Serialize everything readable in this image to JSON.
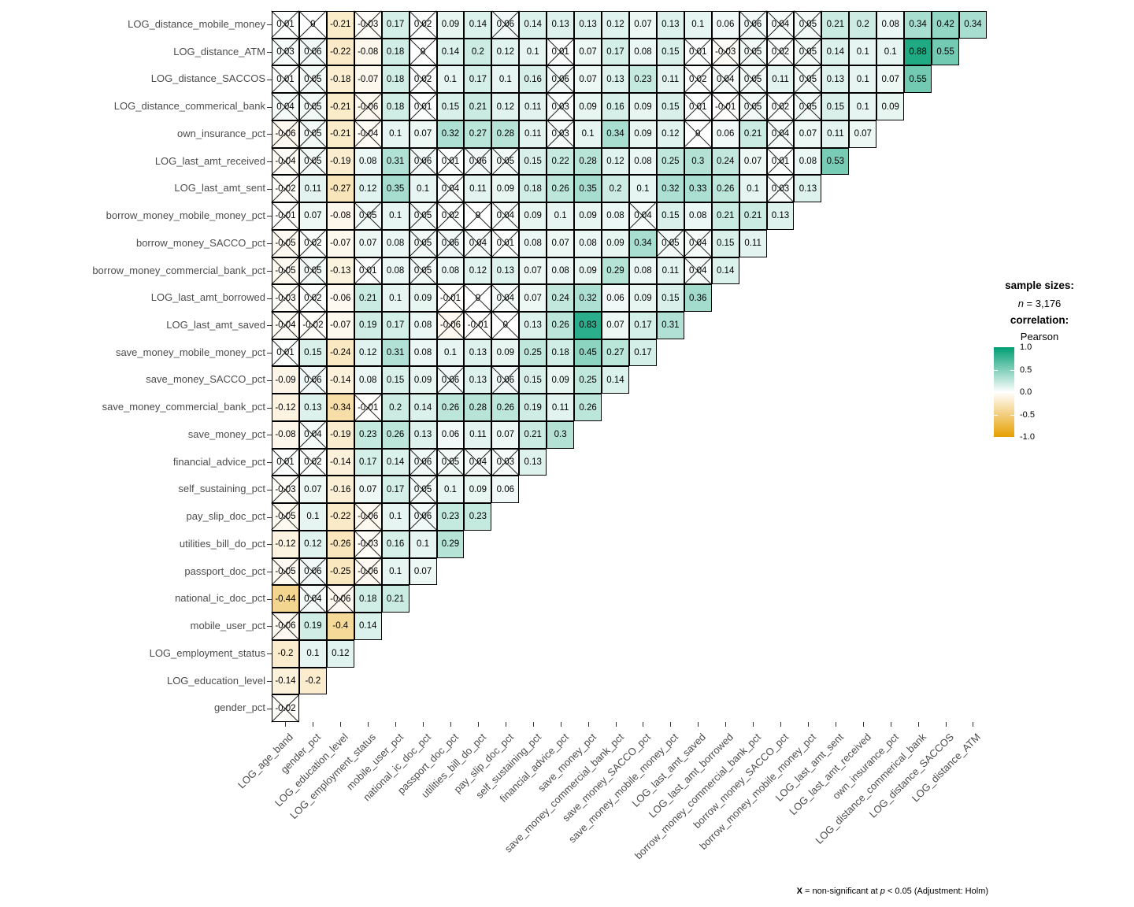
{
  "chart_data": {
    "type": "heatmap",
    "subtype": "triangular-correlation-matrix",
    "x_categories": [
      "LOG_age_band",
      "gender_pct",
      "LOG_education_level",
      "LOG_employment_status",
      "mobile_user_pct",
      "national_ic_doc_pct",
      "passport_doc_pct",
      "utilities_bill_do_pct",
      "pay_slip_doc_pct",
      "self_sustaining_pct",
      "financial_advice_pct",
      "save_money_pct",
      "save_money_commercial_bank_pct",
      "save_money_SACCO_pct",
      "save_money_mobile_money_pct",
      "LOG_last_amt_saved",
      "LOG_last_amt_borrowed",
      "borrow_money_commercial_bank_pct",
      "borrow_money_SACCO_pct",
      "borrow_money_mobile_money_pct",
      "LOG_last_amt_sent",
      "LOG_last_amt_received",
      "own_insurance_pct",
      "LOG_distance_commerical_bank",
      "LOG_distance_SACCOS",
      "LOG_distance_ATM"
    ],
    "rows": [
      {
        "label": "LOG_distance_mobile_money",
        "values": [
          0.01,
          0,
          -0.21,
          -0.03,
          0.17,
          0.02,
          0.09,
          0.14,
          0.06,
          0.14,
          0.13,
          0.13,
          0.12,
          0.07,
          0.13,
          0.1,
          0.06,
          0.06,
          0.04,
          0.05,
          0.21,
          0.2,
          0.08,
          0.34,
          0.42,
          0.34
        ],
        "non_significant_idx": [
          0,
          1,
          3,
          5,
          8,
          17,
          18,
          19
        ]
      },
      {
        "label": "LOG_distance_ATM",
        "values": [
          0.03,
          0.06,
          -0.22,
          -0.08,
          0.18,
          0,
          0.14,
          0.2,
          0.12,
          0.1,
          0.01,
          0.07,
          0.17,
          0.08,
          0.15,
          0.01,
          -0.03,
          0.05,
          0.02,
          0.05,
          0.14,
          0.1,
          0.1,
          0.88,
          0.55
        ],
        "non_significant_idx": [
          0,
          1,
          5,
          10,
          15,
          16,
          17,
          18,
          19
        ]
      },
      {
        "label": "LOG_distance_SACCOS",
        "values": [
          0.01,
          0.05,
          -0.18,
          -0.07,
          0.18,
          0.02,
          0.1,
          0.17,
          0.1,
          0.16,
          0.06,
          0.07,
          0.13,
          0.23,
          0.11,
          0.02,
          0.04,
          0.05,
          0.11,
          0.05,
          0.13,
          0.1,
          0.07,
          0.55
        ],
        "non_significant_idx": [
          0,
          1,
          5,
          10,
          15,
          16,
          17,
          19
        ]
      },
      {
        "label": "LOG_distance_commerical_bank",
        "values": [
          0.04,
          0.05,
          -0.21,
          -0.06,
          0.18,
          0.01,
          0.15,
          0.21,
          0.12,
          0.11,
          0.03,
          0.09,
          0.16,
          0.09,
          0.15,
          0.01,
          -0.01,
          0.05,
          0.02,
          0.05,
          0.15,
          0.1,
          0.09
        ],
        "non_significant_idx": [
          0,
          1,
          3,
          5,
          10,
          15,
          16,
          17,
          18,
          19
        ]
      },
      {
        "label": "own_insurance_pct",
        "values": [
          -0.06,
          0.05,
          -0.21,
          -0.04,
          0.1,
          0.07,
          0.32,
          0.27,
          0.28,
          0.11,
          0.03,
          0.1,
          0.34,
          0.09,
          0.12,
          0,
          0.06,
          0.21,
          0.04,
          0.07,
          0.11,
          0.07
        ],
        "non_significant_idx": [
          0,
          1,
          3,
          10,
          15,
          18
        ]
      },
      {
        "label": "LOG_last_amt_received",
        "values": [
          -0.04,
          0.05,
          -0.19,
          0.08,
          0.31,
          0.06,
          0.01,
          0.06,
          0.05,
          0.15,
          0.22,
          0.28,
          0.12,
          0.08,
          0.25,
          0.3,
          0.24,
          0.07,
          0.01,
          0.08,
          0.53
        ],
        "non_significant_idx": [
          0,
          1,
          5,
          6,
          7,
          8,
          18
        ]
      },
      {
        "label": "LOG_last_amt_sent",
        "values": [
          -0.02,
          0.11,
          -0.27,
          0.12,
          0.35,
          0.1,
          0.04,
          0.11,
          0.09,
          0.18,
          0.26,
          0.35,
          0.2,
          0.1,
          0.32,
          0.33,
          0.26,
          0.1,
          0.03,
          0.13
        ],
        "non_significant_idx": [
          0,
          6,
          18
        ]
      },
      {
        "label": "borrow_money_mobile_money_pct",
        "values": [
          -0.01,
          0.07,
          -0.08,
          0.05,
          0.1,
          0.05,
          0.02,
          0,
          0.04,
          0.09,
          0.1,
          0.09,
          0.08,
          0.04,
          0.15,
          0.08,
          0.21,
          0.21,
          0.13
        ],
        "non_significant_idx": [
          0,
          3,
          5,
          6,
          7,
          8,
          13
        ]
      },
      {
        "label": "borrow_money_SACCO_pct",
        "values": [
          -0.05,
          0.02,
          -0.07,
          0.07,
          0.08,
          0.05,
          0.06,
          0.04,
          0.01,
          0.08,
          0.07,
          0.08,
          0.09,
          0.34,
          0.05,
          0.04,
          0.15,
          0.11
        ],
        "non_significant_idx": [
          0,
          1,
          5,
          6,
          7,
          8,
          14,
          15
        ]
      },
      {
        "label": "borrow_money_commercial_bank_pct",
        "values": [
          -0.05,
          0.05,
          -0.13,
          0.01,
          0.08,
          0.05,
          0.08,
          0.12,
          0.13,
          0.07,
          0.08,
          0.09,
          0.29,
          0.08,
          0.11,
          0.04,
          0.14
        ],
        "non_significant_idx": [
          0,
          1,
          3,
          5,
          15
        ]
      },
      {
        "label": "LOG_last_amt_borrowed",
        "values": [
          -0.03,
          0.02,
          -0.06,
          0.21,
          0.1,
          0.09,
          -0.01,
          0,
          0.04,
          0.07,
          0.24,
          0.32,
          0.06,
          0.09,
          0.15,
          0.36
        ],
        "non_significant_idx": [
          0,
          1,
          6,
          7,
          8
        ]
      },
      {
        "label": "LOG_last_amt_saved",
        "values": [
          -0.04,
          -0.02,
          -0.07,
          0.19,
          0.17,
          0.08,
          -0.06,
          -0.01,
          0,
          0.13,
          0.26,
          0.83,
          0.07,
          0.17,
          0.31
        ],
        "non_significant_idx": [
          0,
          1,
          6,
          7,
          8
        ]
      },
      {
        "label": "save_money_mobile_money_pct",
        "values": [
          0.01,
          0.15,
          -0.24,
          0.12,
          0.31,
          0.08,
          0.1,
          0.13,
          0.09,
          0.25,
          0.18,
          0.45,
          0.27,
          0.17
        ],
        "non_significant_idx": [
          0
        ]
      },
      {
        "label": "save_money_SACCO_pct",
        "values": [
          -0.09,
          0.06,
          -0.14,
          0.08,
          0.15,
          0.09,
          0.06,
          0.13,
          0.06,
          0.15,
          0.09,
          0.25,
          0.14
        ],
        "non_significant_idx": [
          1,
          6,
          8
        ]
      },
      {
        "label": "save_money_commercial_bank_pct",
        "values": [
          -0.12,
          0.13,
          -0.34,
          -0.01,
          0.2,
          0.14,
          0.26,
          0.28,
          0.26,
          0.19,
          0.11,
          0.26
        ],
        "non_significant_idx": [
          3
        ]
      },
      {
        "label": "save_money_pct",
        "values": [
          -0.08,
          0.04,
          -0.19,
          0.23,
          0.26,
          0.13,
          0.06,
          0.11,
          0.07,
          0.21,
          0.3
        ],
        "non_significant_idx": [
          1
        ]
      },
      {
        "label": "financial_advice_pct",
        "values": [
          0.01,
          0.02,
          -0.14,
          0.17,
          0.14,
          0.06,
          0.05,
          0.04,
          0.03,
          0.13
        ],
        "non_significant_idx": [
          0,
          1,
          5,
          6,
          7,
          8
        ]
      },
      {
        "label": "self_sustaining_pct",
        "values": [
          -0.03,
          0.07,
          -0.16,
          0.07,
          0.17,
          0.05,
          0.1,
          0.09,
          0.06
        ],
        "non_significant_idx": [
          0,
          5
        ]
      },
      {
        "label": "pay_slip_doc_pct",
        "values": [
          -0.05,
          0.1,
          -0.22,
          -0.06,
          0.1,
          0.06,
          0.23,
          0.23
        ],
        "non_significant_idx": [
          0,
          3,
          5
        ]
      },
      {
        "label": "utilities_bill_do_pct",
        "values": [
          -0.12,
          0.12,
          -0.26,
          -0.03,
          0.16,
          0.1,
          0.29
        ],
        "non_significant_idx": [
          3
        ]
      },
      {
        "label": "passport_doc_pct",
        "values": [
          -0.05,
          0.06,
          -0.25,
          -0.06,
          0.1,
          0.07
        ],
        "non_significant_idx": [
          0,
          1,
          3
        ]
      },
      {
        "label": "national_ic_doc_pct",
        "values": [
          -0.44,
          0.04,
          -0.06,
          0.18,
          0.21
        ],
        "non_significant_idx": [
          1,
          2
        ]
      },
      {
        "label": "mobile_user_pct",
        "values": [
          -0.06,
          0.19,
          -0.4,
          0.14
        ],
        "non_significant_idx": [
          0
        ]
      },
      {
        "label": "LOG_employment_status",
        "values": [
          -0.2,
          0.1,
          0.12
        ],
        "non_significant_idx": []
      },
      {
        "label": "LOG_education_level",
        "values": [
          -0.14,
          -0.2
        ],
        "non_significant_idx": []
      },
      {
        "label": "gender_pct",
        "values": [
          -0.02
        ],
        "non_significant_idx": [
          0
        ]
      }
    ],
    "legend": {
      "sample_sizes_label": "sample sizes:",
      "n_var": "n",
      "n_rest": " = 3,176",
      "correlation_label": "correlation:",
      "method": "Pearson",
      "colorbar_ticks": [
        "1.0",
        "0.5",
        "0.0",
        "-0.5",
        "-1.0"
      ],
      "legend_position": "right"
    },
    "footnote": {
      "x_symbol": "X",
      "mid_text": " = non-significant at ",
      "p_var": "p",
      "tail_text": " < 0.05 (Adjustment: Holm)"
    },
    "colors": {
      "positive_end": "#009E73",
      "midpoint": "#FFFFFF",
      "negative_end": "#E69F00",
      "axis_text": "#4D4D4D",
      "grid_line": "#000000"
    },
    "value_range": [
      -1.0,
      1.0
    ],
    "grid": false,
    "title": ""
  }
}
